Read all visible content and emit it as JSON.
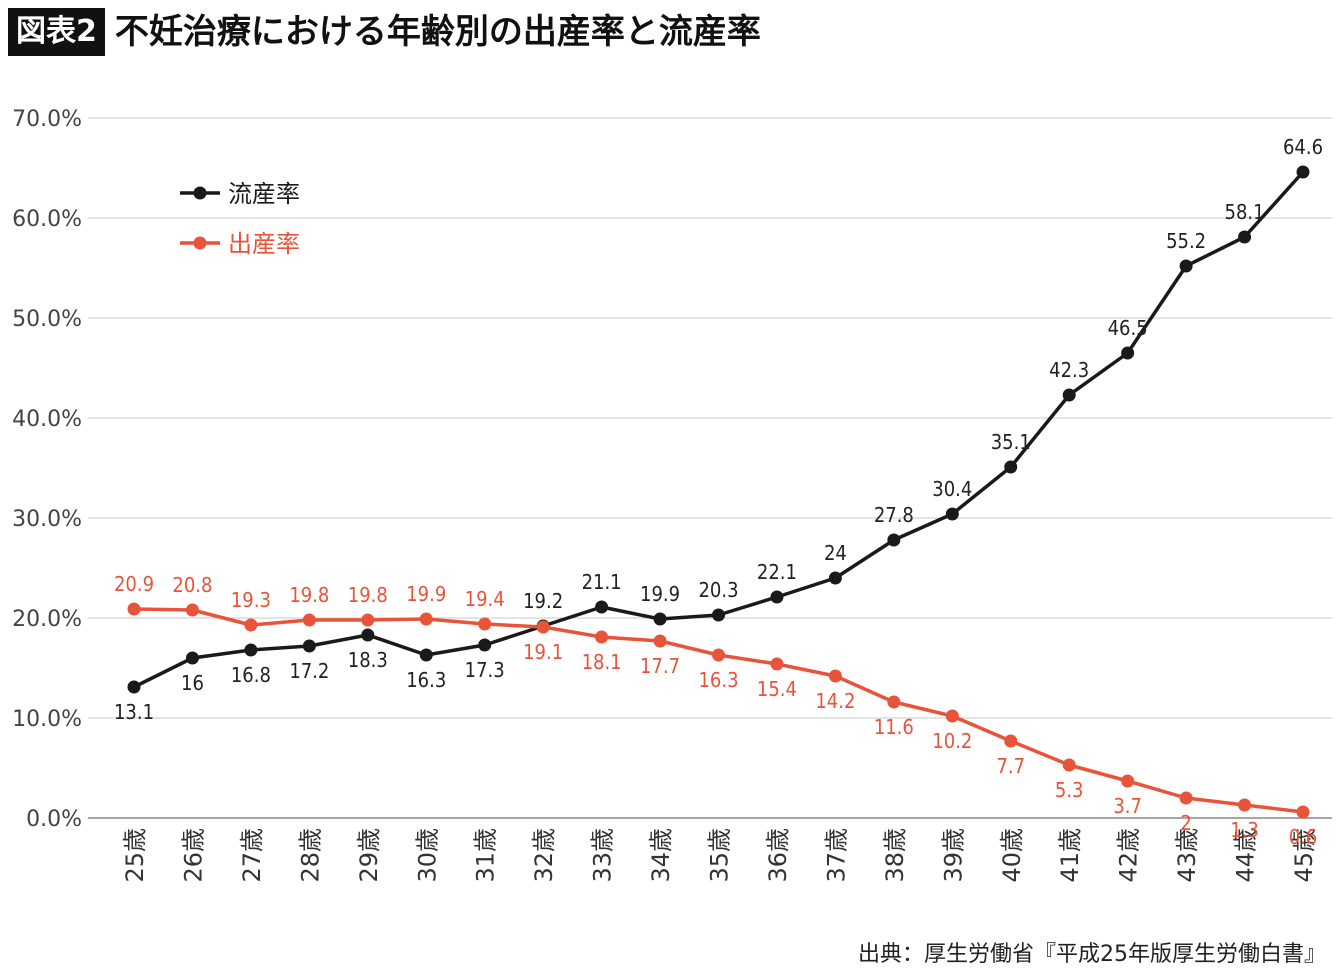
{
  "header": {
    "badge": "図表2",
    "title": "不妊治療における年齢別の出産率と流産率"
  },
  "source": "出典：厚生労働省『平成25年版厚生労働白書』",
  "chart_data": {
    "type": "line",
    "categories": [
      "25歳",
      "26歳",
      "27歳",
      "28歳",
      "29歳",
      "30歳",
      "31歳",
      "32歳",
      "33歳",
      "34歳",
      "35歳",
      "36歳",
      "37歳",
      "38歳",
      "39歳",
      "40歳",
      "41歳",
      "42歳",
      "43歳",
      "44歳",
      "45歳"
    ],
    "yticks": [
      "0.0%",
      "10.0%",
      "20.0%",
      "30.0%",
      "40.0%",
      "50.0%",
      "60.0%",
      "70.0%"
    ],
    "ylim": [
      0,
      70
    ],
    "grid": true,
    "legend_position": "top-left",
    "series": [
      {
        "name": "流産率",
        "color": "#1a1a1a",
        "values": [
          13.1,
          16,
          16.8,
          17.2,
          18.3,
          16.3,
          17.3,
          19.2,
          21.1,
          19.9,
          20.3,
          22.1,
          24,
          27.8,
          30.4,
          35.1,
          42.3,
          46.5,
          55.2,
          58.1,
          64.6
        ],
        "labels": [
          "13.1",
          "16",
          "16.8",
          "17.2",
          "18.3",
          "16.3",
          "17.3",
          "19.2",
          "21.1",
          "19.9",
          "20.3",
          "22.1",
          "24",
          "27.8",
          "30.4",
          "35.1",
          "42.3",
          "46.5",
          "55.2",
          "58.1",
          "64.6"
        ]
      },
      {
        "name": "出産率",
        "color": "#e8543a",
        "values": [
          20.9,
          20.8,
          19.3,
          19.8,
          19.8,
          19.9,
          19.4,
          19.1,
          18.1,
          17.7,
          16.3,
          15.4,
          14.2,
          11.6,
          10.2,
          7.7,
          5.3,
          3.7,
          2,
          1.3,
          0.6
        ],
        "labels": [
          "20.9",
          "20.8",
          "19.3",
          "19.8",
          "19.8",
          "19.9",
          "19.4",
          "19.1",
          "18.1",
          "17.7",
          "16.3",
          "15.4",
          "14.2",
          "11.6",
          "10.2",
          "7.7",
          "5.3",
          "3.7",
          "2",
          "1.3",
          "0.6"
        ]
      }
    ]
  }
}
